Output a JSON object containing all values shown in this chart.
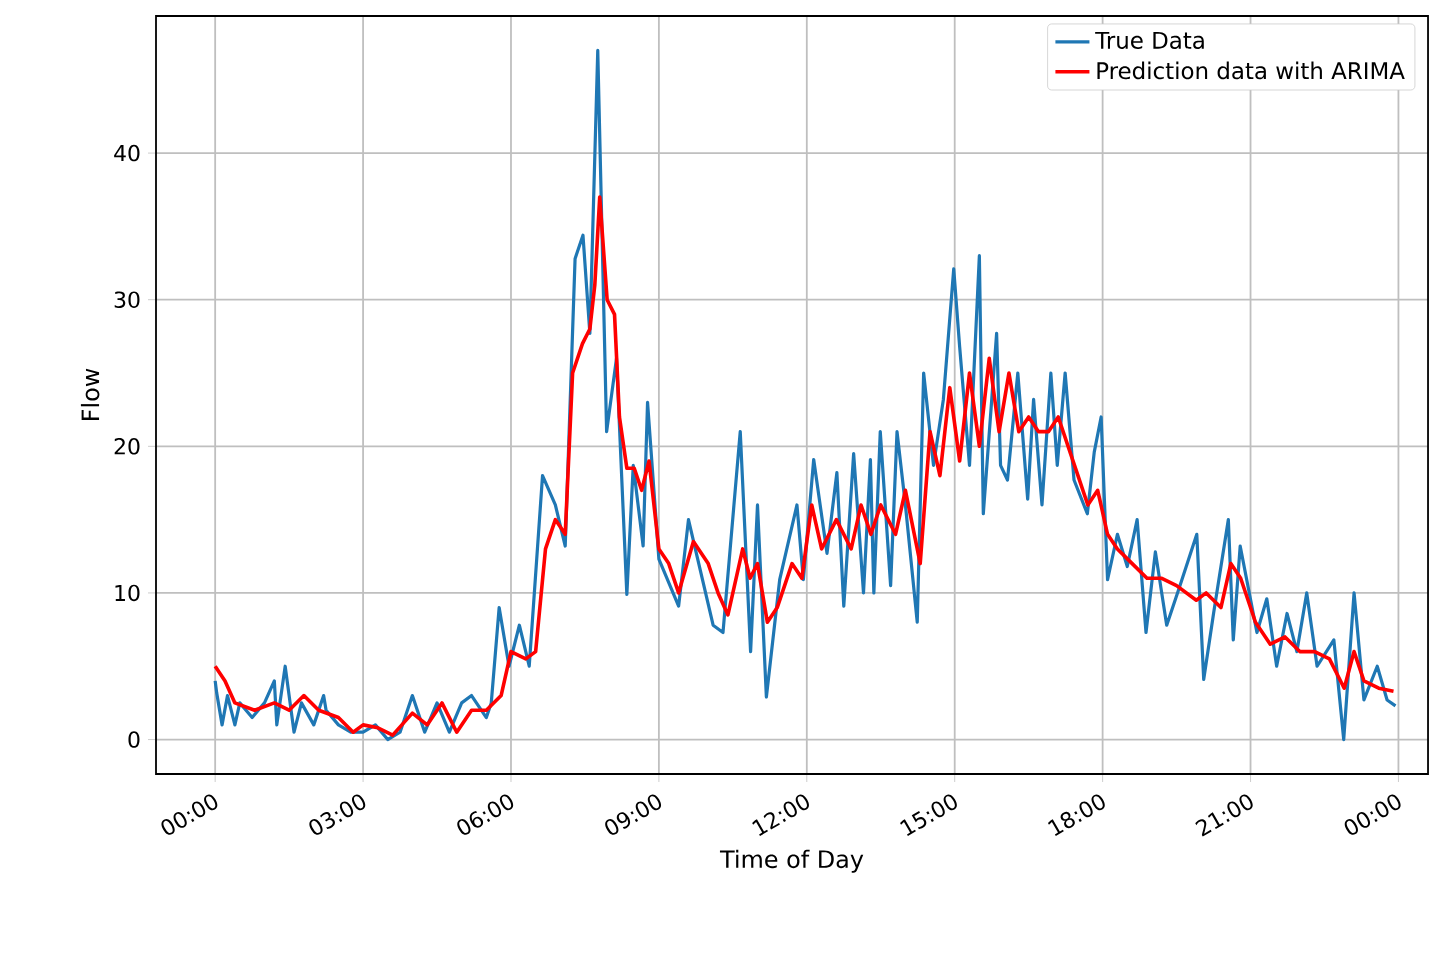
{
  "chart_data": {
    "type": "line",
    "xlabel": "Time of Day",
    "ylabel": "Flow",
    "xlim": [
      -1.2,
      24.6
    ],
    "ylim": [
      -2.35,
      49.35
    ],
    "xticks": [
      {
        "value": 0,
        "label": "00:00"
      },
      {
        "value": 3,
        "label": "03:00"
      },
      {
        "value": 6,
        "label": "06:00"
      },
      {
        "value": 9,
        "label": "09:00"
      },
      {
        "value": 12,
        "label": "12:00"
      },
      {
        "value": 15,
        "label": "15:00"
      },
      {
        "value": 18,
        "label": "18:00"
      },
      {
        "value": 21,
        "label": "21:00"
      },
      {
        "value": 24,
        "label": "00:00"
      }
    ],
    "yticks": [
      0,
      10,
      20,
      30,
      40
    ],
    "grid": true,
    "legend": "top right",
    "series": [
      {
        "name": "True Data",
        "color": "#1f77b4",
        "x": [
          0,
          0.03,
          0.14,
          0.25,
          0.4,
          0.5,
          0.75,
          1,
          1.2,
          1.25,
          1.42,
          1.6,
          1.75,
          2,
          2.2,
          2.25,
          2.5,
          2.75,
          3,
          3.25,
          3.5,
          3.75,
          4,
          4.25,
          4.5,
          4.75,
          5,
          5.2,
          5.5,
          5.6,
          5.76,
          5.96,
          6.17,
          6.37,
          6.64,
          6.9,
          7.1,
          7.3,
          7.46,
          7.6,
          7.76,
          7.94,
          8.14,
          8.35,
          8.48,
          8.68,
          8.77,
          9,
          9.4,
          9.6,
          10.1,
          10.3,
          10.65,
          10.86,
          11,
          11.18,
          11.45,
          11.8,
          11.93,
          12.14,
          12.41,
          12.61,
          12.75,
          12.95,
          13.15,
          13.29,
          13.36,
          13.49,
          13.7,
          13.83,
          14,
          14.24,
          14.37,
          14.57,
          14.77,
          14.98,
          15.1,
          15.3,
          15.5,
          15.58,
          15.85,
          15.93,
          16.07,
          16.28,
          16.48,
          16.6,
          16.77,
          16.95,
          17.08,
          17.24,
          17.42,
          17.69,
          17.83,
          17.97,
          18.1,
          18.3,
          18.5,
          18.7,
          18.88,
          19.07,
          19.3,
          19.57,
          19.91,
          20.05,
          20.25,
          20.55,
          20.65,
          20.79,
          21.13,
          21.33,
          21.53,
          21.74,
          21.94,
          22.14,
          22.35,
          22.69,
          22.89,
          23.1,
          23.3,
          23.57,
          23.77,
          23.94
        ],
        "values": [
          4,
          3.2,
          1,
          3,
          1,
          2.5,
          1.5,
          2.5,
          4,
          1,
          5,
          0.5,
          2.5,
          1,
          3,
          2,
          1,
          0.5,
          0.5,
          1,
          0,
          0.5,
          3,
          0.5,
          2.5,
          0.5,
          2.5,
          3,
          1.5,
          2.5,
          9,
          5,
          7.8,
          5,
          18,
          16,
          13.2,
          32.8,
          34.4,
          27.7,
          47,
          21,
          26,
          9.9,
          18.7,
          13.2,
          23,
          12.3,
          9.1,
          15,
          7.8,
          7.3,
          21,
          6,
          16,
          2.9,
          10.9,
          16,
          10.9,
          19.1,
          12.7,
          18.2,
          9.1,
          19.5,
          10,
          19.1,
          10,
          21,
          10.5,
          21,
          16,
          8,
          25,
          18.7,
          23.2,
          32.1,
          26.8,
          18.7,
          33,
          15.4,
          27.7,
          18.7,
          17.7,
          25,
          16.4,
          23.2,
          16,
          25,
          18.7,
          25,
          17.7,
          15.4,
          19.6,
          22,
          10.9,
          14,
          11.8,
          15,
          7.3,
          12.8,
          7.8,
          10.5,
          14,
          4.1,
          8.6,
          15,
          6.8,
          13.2,
          7.3,
          9.6,
          5,
          8.6,
          6,
          10,
          5,
          6.8,
          0,
          10,
          2.7,
          5,
          2.7,
          2.3
        ]
      },
      {
        "name": "Prediction data with ARIMA",
        "color": "#ff0000",
        "x": [
          0,
          0.2,
          0.4,
          0.8,
          1.2,
          1.5,
          1.8,
          2.1,
          2.5,
          2.8,
          3,
          3.3,
          3.6,
          4,
          4.3,
          4.6,
          4.9,
          5.2,
          5.5,
          5.8,
          6,
          6.3,
          6.5,
          6.7,
          6.9,
          7.1,
          7.25,
          7.45,
          7.6,
          7.7,
          7.8,
          7.95,
          8.1,
          8.2,
          8.35,
          8.5,
          8.65,
          8.8,
          9,
          9.2,
          9.4,
          9.7,
          10,
          10.2,
          10.4,
          10.7,
          10.85,
          11,
          11.2,
          11.4,
          11.7,
          11.9,
          12.1,
          12.3,
          12.6,
          12.9,
          13.1,
          13.3,
          13.5,
          13.8,
          14,
          14.3,
          14.5,
          14.7,
          14.9,
          15.1,
          15.3,
          15.5,
          15.7,
          15.9,
          16.1,
          16.3,
          16.5,
          16.7,
          16.9,
          17.1,
          17.3,
          17.5,
          17.7,
          17.9,
          18.1,
          18.3,
          18.6,
          18.9,
          19.2,
          19.5,
          19.9,
          20.1,
          20.4,
          20.6,
          20.8,
          21.1,
          21.4,
          21.7,
          22,
          22.3,
          22.6,
          22.9,
          23.1,
          23.3,
          23.6,
          23.9
        ],
        "values": [
          5,
          4,
          2.5,
          2,
          2.5,
          2,
          3,
          2,
          1.5,
          0.5,
          1,
          0.8,
          0.3,
          1.8,
          1,
          2.5,
          0.5,
          2,
          2,
          3,
          6,
          5.5,
          6,
          13,
          15,
          14,
          25,
          27,
          28,
          31,
          37,
          30,
          29,
          22,
          18.5,
          18.5,
          17,
          19,
          13,
          12,
          10,
          13.5,
          12,
          10,
          8.5,
          13,
          11,
          12,
          8,
          9,
          12,
          11,
          16,
          13,
          15,
          13,
          16,
          14,
          16,
          14,
          17,
          12,
          21,
          18,
          24,
          19,
          25,
          20,
          26,
          21,
          25,
          21,
          22,
          21,
          21,
          22,
          20,
          18,
          16,
          17,
          14,
          13,
          12,
          11,
          11,
          10.5,
          9.5,
          10,
          9,
          12,
          11,
          8,
          6.5,
          7,
          6,
          6,
          5.5,
          3.5,
          6,
          4,
          3.5,
          3.3
        ]
      }
    ]
  }
}
